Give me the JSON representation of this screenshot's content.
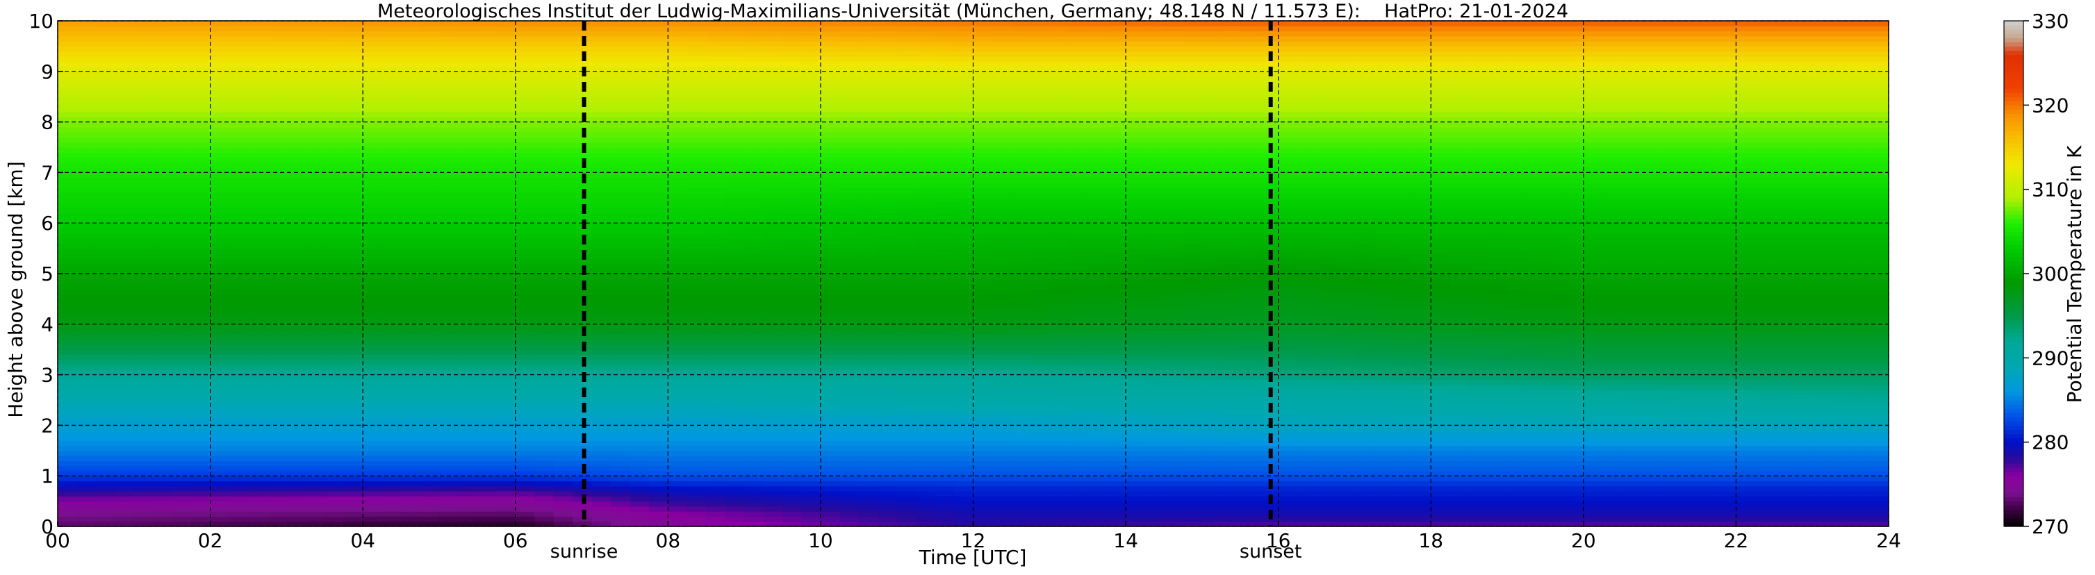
{
  "chart_data": {
    "type": "heatmap",
    "title": "Meteorologisches Institut der Ludwig-Maximilians-Universität (München, Germany; 48.148 N / 11.573 E):    HatPro: 21-01-2024",
    "xlabel": "Time [UTC]",
    "ylabel": "Height above ground [km]",
    "colorbar_label": "Potential Temperature in K",
    "xlim": [
      0,
      24
    ],
    "ylim": [
      0,
      10
    ],
    "x_ticks": [
      0,
      2,
      4,
      6,
      8,
      10,
      12,
      14,
      16,
      18,
      20,
      22,
      24
    ],
    "x_tick_labels": [
      "00",
      "02",
      "04",
      "06",
      "08",
      "10",
      "12",
      "14",
      "16",
      "18",
      "20",
      "22",
      "24"
    ],
    "y_ticks": [
      0,
      1,
      2,
      3,
      4,
      5,
      6,
      7,
      8,
      9,
      10
    ],
    "y_tick_labels": [
      "0",
      "1",
      "2",
      "3",
      "4",
      "5",
      "6",
      "7",
      "8",
      "9",
      "10"
    ],
    "clim": [
      270,
      330
    ],
    "colorbar_ticks": [
      270,
      280,
      290,
      300,
      310,
      320,
      330
    ],
    "colorbar_tick_labels": [
      "270",
      "280",
      "290",
      "300",
      "310",
      "320",
      "330"
    ],
    "grid": true,
    "annotations": [
      {
        "label": "sunrise",
        "x": 6.9
      },
      {
        "label": "sunset",
        "x": 15.9
      }
    ],
    "heights_km": [
      0,
      0.25,
      0.5,
      0.75,
      1,
      1.5,
      2,
      2.5,
      3,
      3.5,
      4,
      5,
      6,
      7,
      8,
      9,
      9.5,
      10
    ],
    "profiles": [
      {
        "time": 0,
        "theta": [
          273,
          274,
          276,
          279,
          282,
          285,
          287,
          289,
          292,
          295,
          298,
          300,
          303,
          305,
          308,
          312,
          315,
          318
        ]
      },
      {
        "time": 6,
        "theta": [
          271,
          273,
          275,
          278,
          282,
          285,
          287,
          289,
          292,
          295,
          298,
          300,
          303,
          305,
          308,
          312,
          315,
          319
        ]
      },
      {
        "time": 8,
        "theta": [
          275,
          276,
          278,
          280,
          283,
          285,
          287,
          289,
          292,
          295,
          298,
          300,
          303,
          305,
          308,
          312,
          315,
          319
        ]
      },
      {
        "time": 12,
        "theta": [
          278,
          279,
          280,
          281,
          283,
          285,
          287,
          290,
          292,
          295,
          298,
          300,
          302,
          305,
          308,
          312,
          316,
          320
        ]
      },
      {
        "time": 16,
        "theta": [
          277,
          279,
          280,
          281,
          283,
          285,
          288,
          290,
          293,
          295,
          297,
          299,
          302,
          305,
          308,
          312,
          316,
          321
        ]
      },
      {
        "time": 20,
        "theta": [
          277,
          279,
          280,
          281,
          283,
          285,
          288,
          291,
          294,
          296,
          298,
          300,
          302,
          305,
          308,
          312,
          316,
          321
        ]
      },
      {
        "time": 24,
        "theta": [
          277,
          279,
          280,
          281,
          283,
          285,
          288,
          292,
          294,
          296,
          298,
          300,
          302,
          305,
          308,
          312,
          316,
          321
        ]
      }
    ],
    "colormap": [
      {
        "value": 270,
        "color": "#000000"
      },
      {
        "value": 272,
        "color": "#3a0040"
      },
      {
        "value": 274,
        "color": "#7a1090"
      },
      {
        "value": 276,
        "color": "#8a00a0"
      },
      {
        "value": 278,
        "color": "#2a0a9a"
      },
      {
        "value": 280,
        "color": "#0010c8"
      },
      {
        "value": 283,
        "color": "#0050e8"
      },
      {
        "value": 286,
        "color": "#0098e0"
      },
      {
        "value": 289,
        "color": "#00a8b0"
      },
      {
        "value": 292,
        "color": "#00a898"
      },
      {
        "value": 295,
        "color": "#009a48"
      },
      {
        "value": 299,
        "color": "#009a00"
      },
      {
        "value": 303,
        "color": "#00cc00"
      },
      {
        "value": 306,
        "color": "#20ee00"
      },
      {
        "value": 309,
        "color": "#b0f000"
      },
      {
        "value": 313,
        "color": "#f0e800"
      },
      {
        "value": 316,
        "color": "#f8c000"
      },
      {
        "value": 319,
        "color": "#f89000"
      },
      {
        "value": 322,
        "color": "#f04000"
      },
      {
        "value": 326,
        "color": "#e03000"
      },
      {
        "value": 328,
        "color": "#c8a890"
      },
      {
        "value": 330,
        "color": "#d0d0d0"
      }
    ]
  }
}
